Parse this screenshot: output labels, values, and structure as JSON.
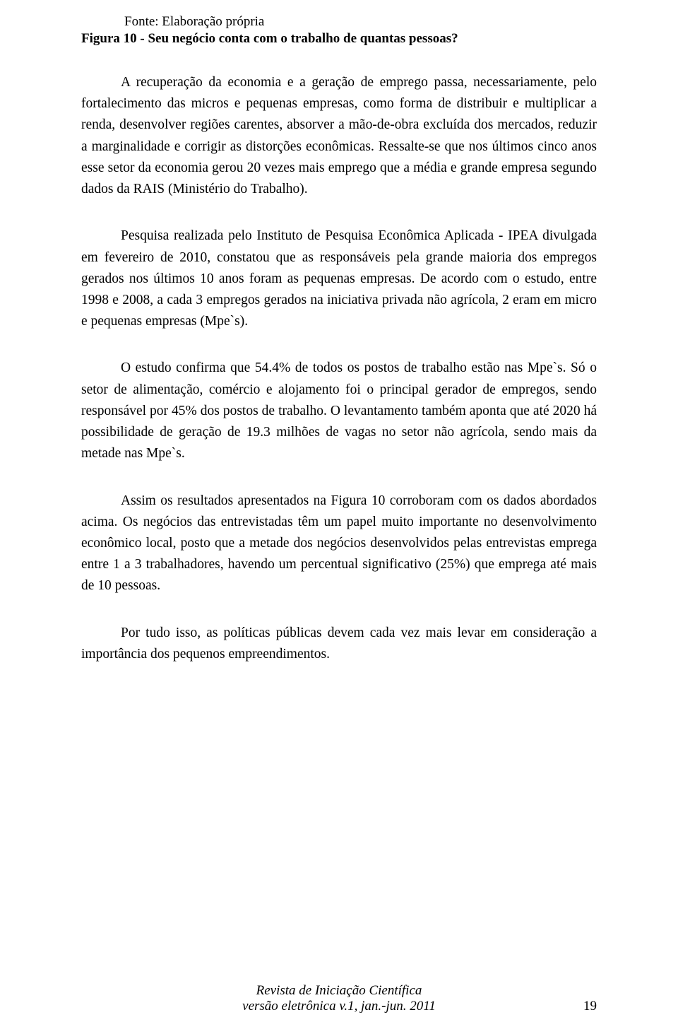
{
  "header": {
    "source": "Fonte: Elaboração própria",
    "figure_title": "Figura 10 - Seu negócio conta com o trabalho de quantas pessoas?"
  },
  "paragraphs": {
    "p1": "A recuperação da economia e a geração de emprego passa, necessariamente, pelo fortalecimento das micros e pequenas empresas, como forma de distribuir e multiplicar a renda, desenvolver regiões carentes, absorver a mão-de-obra excluída dos mercados, reduzir a marginalidade e corrigir as distorções econômicas. Ressalte-se que nos últimos cinco anos esse setor da economia gerou 20 vezes mais emprego que a média e grande empresa segundo dados da RAIS (Ministério do Trabalho).",
    "p2": "Pesquisa realizada pelo Instituto de Pesquisa Econômica Aplicada - IPEA divulgada em fevereiro de 2010, constatou que as responsáveis pela grande maioria dos empregos gerados nos últimos 10 anos foram as pequenas empresas. De acordo com o estudo, entre 1998 e 2008, a cada 3 empregos gerados na iniciativa privada não agrícola, 2 eram em micro e pequenas empresas (Mpe`s).",
    "p3": "O estudo confirma que 54.4% de todos os postos de trabalho estão nas Mpe`s. Só o setor de alimentação, comércio e alojamento foi o principal gerador de empregos, sendo responsável por 45% dos postos de trabalho. O levantamento também aponta que até 2020 há possibilidade de geração de 19.3 milhões de vagas no setor não agrícola, sendo mais da metade nas Mpe`s.",
    "p4": "Assim os resultados apresentados na Figura 10 corroboram com os dados abordados acima. Os negócios das entrevistadas têm um papel muito importante no desenvolvimento econômico local, posto que a metade dos negócios desenvolvidos pelas entrevistas emprega entre 1 a 3 trabalhadores, havendo um percentual significativo (25%)  que emprega até mais de 10 pessoas.",
    "p5": "Por tudo isso, as políticas públicas devem cada vez mais levar em consideração a importância dos pequenos empreendimentos."
  },
  "footer": {
    "journal": "Revista de Iniciação Científica",
    "edition": "versão eletrônica  v.1, jan.-jun. 2011",
    "page_number": "19"
  }
}
